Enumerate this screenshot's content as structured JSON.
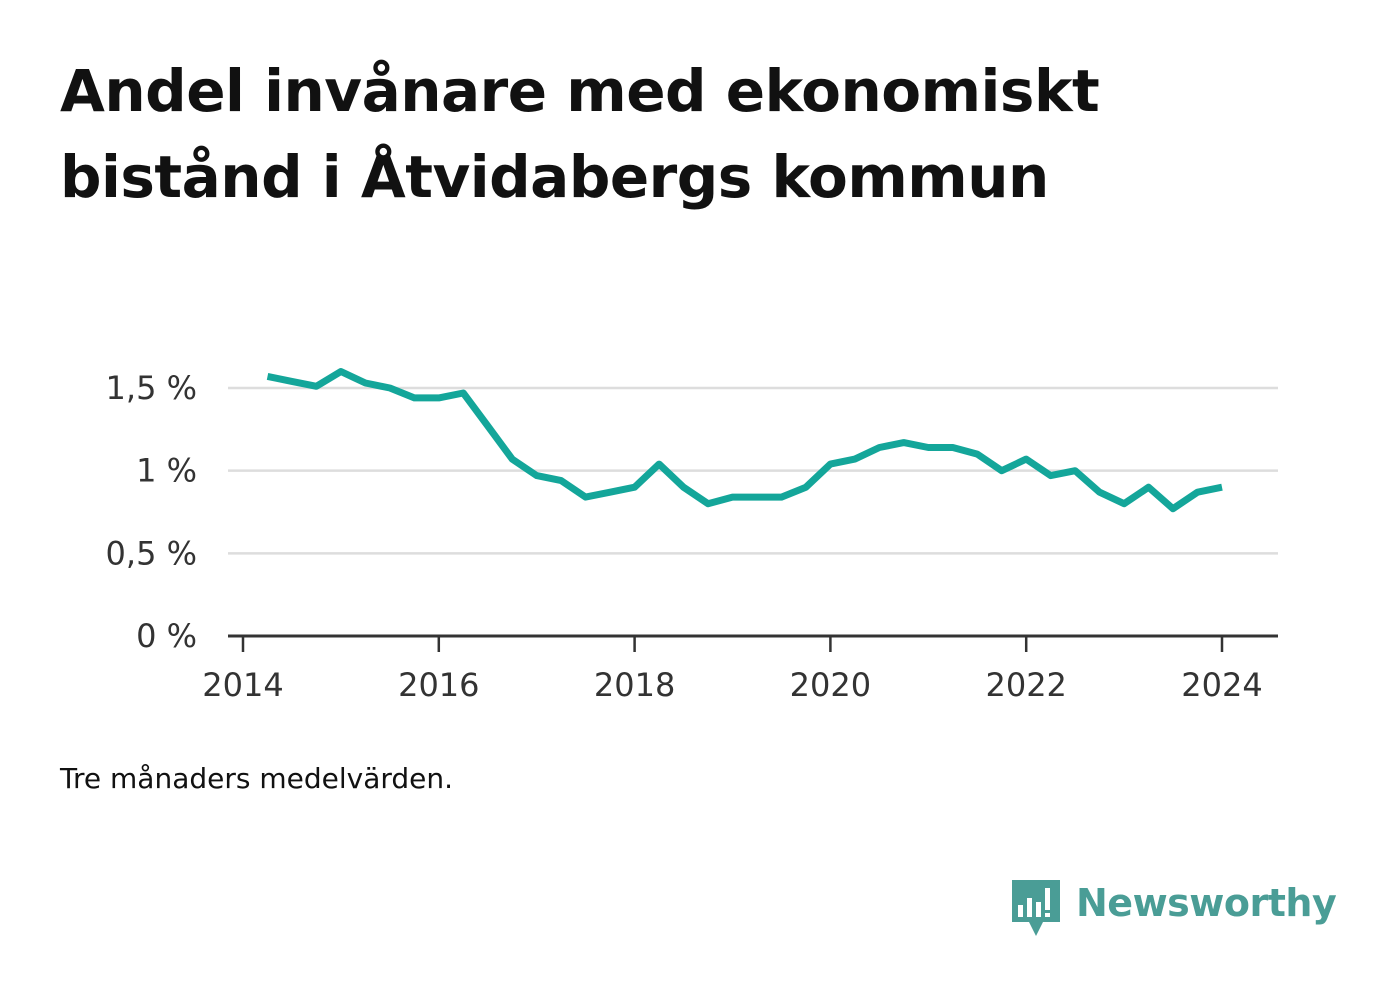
{
  "title_lines": [
    "Andel invånare med ekonomiskt",
    "bistånd i Åtvidabergs kommun"
  ],
  "note": "Tre månaders medelvärden.",
  "brand": {
    "name": "Newsworthy",
    "icon": "newsworthy-bar-chart-icon",
    "color": "#4a9d96"
  },
  "chart_data": {
    "type": "line",
    "title": "Andel invånare med ekonomiskt bistånd i Åtvidabergs kommun",
    "xlabel": "",
    "ylabel": "",
    "x_ticks": [
      "2014",
      "2016",
      "2018",
      "2020",
      "2022",
      "2024"
    ],
    "y_ticks": [
      {
        "value": 0,
        "label": "0 %"
      },
      {
        "value": 0.5,
        "label": "0,5 %"
      },
      {
        "value": 1,
        "label": "1 %"
      },
      {
        "value": 1.5,
        "label": "1,5 %"
      }
    ],
    "ylim": [
      0,
      1.5
    ],
    "xlim": [
      "2014-01",
      "2024-07"
    ],
    "grid": true,
    "line_color": "#14a69a",
    "series": [
      {
        "x": [
          "2014-04",
          "2014-07",
          "2014-10",
          "2015-01",
          "2015-04",
          "2015-07",
          "2015-10",
          "2016-01",
          "2016-04",
          "2016-07",
          "2016-10",
          "2017-01",
          "2017-04",
          "2017-07",
          "2017-10",
          "2018-01",
          "2018-04",
          "2018-07",
          "2018-10",
          "2019-01",
          "2019-04",
          "2019-07",
          "2019-10",
          "2020-01",
          "2020-04",
          "2020-07",
          "2020-10",
          "2021-01",
          "2021-04",
          "2021-07",
          "2021-10",
          "2022-01",
          "2022-04",
          "2022-07",
          "2022-10",
          "2023-01",
          "2023-04",
          "2023-07",
          "2023-10",
          "2024-01"
        ],
        "values": [
          1.57,
          1.54,
          1.51,
          1.6,
          1.53,
          1.5,
          1.44,
          1.44,
          1.47,
          1.27,
          1.07,
          0.97,
          0.94,
          0.84,
          0.87,
          0.9,
          1.04,
          0.9,
          0.8,
          0.84,
          0.84,
          0.84,
          0.9,
          1.04,
          1.07,
          1.14,
          1.17,
          1.14,
          1.14,
          1.1,
          1.0,
          1.07,
          0.97,
          1.0,
          0.87,
          0.8,
          0.9,
          0.77,
          0.87,
          0.9
        ]
      }
    ]
  }
}
